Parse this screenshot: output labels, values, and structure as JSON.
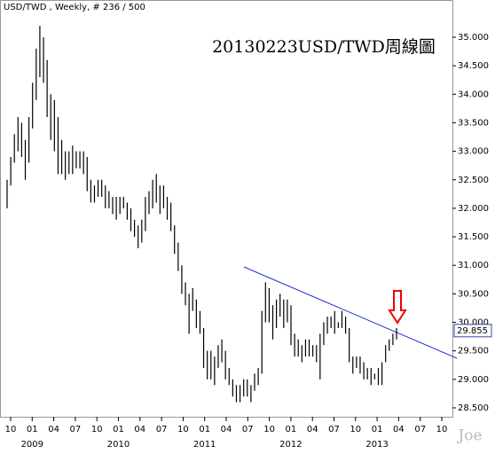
{
  "chart_data": {
    "type": "range_bar",
    "header": "USD/TWD , Weekly, # 236 / 500",
    "title": "20130223USD/TWD周線圖",
    "watermark": "Joe",
    "last_label": "29.855",
    "last_value": 29.855,
    "color": "#000000",
    "ylim": [
      28.344,
      35.653
    ],
    "yticks": [
      {
        "value": 28.5,
        "label": "28.500"
      },
      {
        "value": 29,
        "label": "29.000"
      },
      {
        "value": 29.5,
        "label": "29.500"
      },
      {
        "value": 30,
        "label": "30.000"
      },
      {
        "value": 30.5,
        "label": "30.500"
      },
      {
        "value": 31,
        "label": "31.000"
      },
      {
        "value": 31.5,
        "label": "31.500"
      },
      {
        "value": 32,
        "label": "32.000"
      },
      {
        "value": 32.5,
        "label": "32.500"
      },
      {
        "value": 33,
        "label": "33.000"
      },
      {
        "value": 33.5,
        "label": "33.500"
      },
      {
        "value": 34,
        "label": "34.000"
      },
      {
        "value": 34.5,
        "label": "34.500"
      },
      {
        "value": 35,
        "label": "35.000"
      }
    ],
    "month_labels": [
      "10",
      "01",
      "04",
      "07",
      "10",
      "01",
      "04",
      "07",
      "10",
      "01",
      "04",
      "07",
      "10",
      "01",
      "04",
      "07",
      "10",
      "01",
      "04",
      "07",
      "10"
    ],
    "year_labels": [
      "2009",
      "2010",
      "2011",
      "2012",
      "2013"
    ],
    "high": [
      32.5,
      32.9,
      33.3,
      33.6,
      33.5,
      33.2,
      33.6,
      34.2,
      34.8,
      35.2,
      35.0,
      34.6,
      34.0,
      33.9,
      33.6,
      33.2,
      33.0,
      33.0,
      33.1,
      33.0,
      33.0,
      33.0,
      32.9,
      32.5,
      32.4,
      32.5,
      32.5,
      32.4,
      32.3,
      32.2,
      32.2,
      32.2,
      32.2,
      32.1,
      32.0,
      31.8,
      31.7,
      31.8,
      32.2,
      32.3,
      32.5,
      32.6,
      32.4,
      32.4,
      32.2,
      32.1,
      31.7,
      31.4,
      31.0,
      30.7,
      30.5,
      30.6,
      30.4,
      30.2,
      29.9,
      29.5,
      29.5,
      29.4,
      29.6,
      29.7,
      29.5,
      29.2,
      29.0,
      28.9,
      28.9,
      29.0,
      29.0,
      28.9,
      29.1,
      29.2,
      30.2,
      30.7,
      30.6,
      30.3,
      30.4,
      30.5,
      30.4,
      30.4,
      30.3,
      29.8,
      29.7,
      29.6,
      29.7,
      29.7,
      29.6,
      29.6,
      29.8,
      30.0,
      30.1,
      30.1,
      30.2,
      30.0,
      30.2,
      30.1,
      29.9,
      29.4,
      29.4,
      29.4,
      29.3,
      29.2,
      29.2,
      29.1,
      29.2,
      29.3,
      29.6,
      29.7,
      29.8,
      29.9
    ],
    "low": [
      32.0,
      32.4,
      32.8,
      33.0,
      32.9,
      32.5,
      32.8,
      33.4,
      33.9,
      34.3,
      34.2,
      33.6,
      33.2,
      33.0,
      32.6,
      32.6,
      32.5,
      32.6,
      32.6,
      32.7,
      32.7,
      32.6,
      32.3,
      32.1,
      32.1,
      32.2,
      32.2,
      32.0,
      32.0,
      31.9,
      31.8,
      31.9,
      32.0,
      31.8,
      31.6,
      31.5,
      31.3,
      31.4,
      31.6,
      31.9,
      32.0,
      32.1,
      31.9,
      32.0,
      31.8,
      31.6,
      31.2,
      30.9,
      30.5,
      30.3,
      29.8,
      30.2,
      29.9,
      29.8,
      29.2,
      29.0,
      29.0,
      28.9,
      29.2,
      29.3,
      29.0,
      28.9,
      28.7,
      28.6,
      28.6,
      28.7,
      28.7,
      28.6,
      28.8,
      28.9,
      29.1,
      30.0,
      30.0,
      29.7,
      29.9,
      30.1,
      29.9,
      30.0,
      29.6,
      29.4,
      29.4,
      29.3,
      29.4,
      29.4,
      29.4,
      29.3,
      29.0,
      29.6,
      29.8,
      29.9,
      29.8,
      29.9,
      29.9,
      29.8,
      29.3,
      29.1,
      29.2,
      29.1,
      29.0,
      29.0,
      28.9,
      29.0,
      28.9,
      28.9,
      29.3,
      29.5,
      29.6,
      29.7
    ]
  }
}
